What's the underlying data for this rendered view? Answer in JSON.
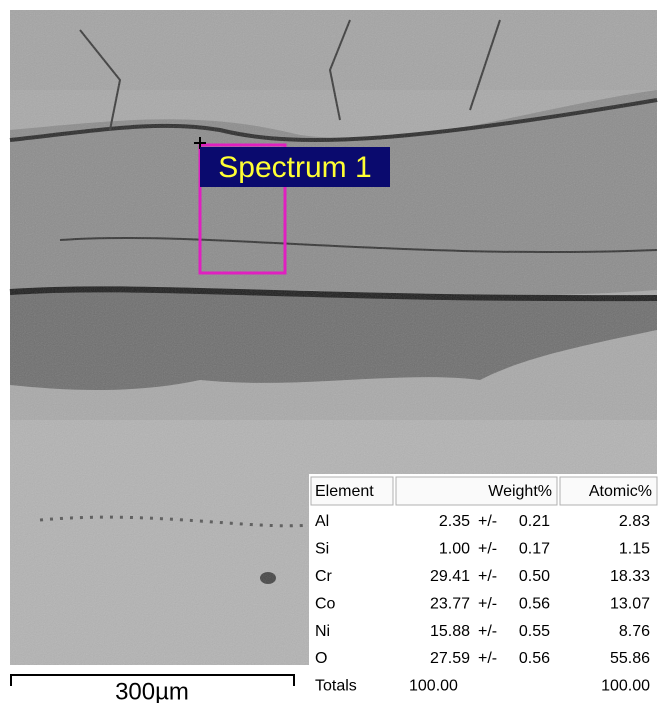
{
  "image": {
    "label": "Spectrum 1",
    "scale_bar": "300µm"
  },
  "table": {
    "header": [
      "Element",
      "Weight%",
      "Atomic%"
    ],
    "rows": [
      [
        "Al",
        "2.35",
        "+/-",
        "0.21",
        "2.83"
      ],
      [
        "Si",
        "1.00",
        "+/-",
        "0.17",
        "1.15"
      ],
      [
        "Cr",
        "29.41",
        "+/-",
        "0.50",
        "18.33"
      ],
      [
        "Co",
        "23.77",
        "+/-",
        "0.56",
        "13.07"
      ],
      [
        "Ni",
        "15.88",
        "+/-",
        "0.55",
        "8.76"
      ],
      [
        "O",
        "27.59",
        "+/-",
        "0.56",
        "55.86"
      ]
    ],
    "totals": [
      "Totals",
      "100.00",
      "100.00"
    ]
  }
}
